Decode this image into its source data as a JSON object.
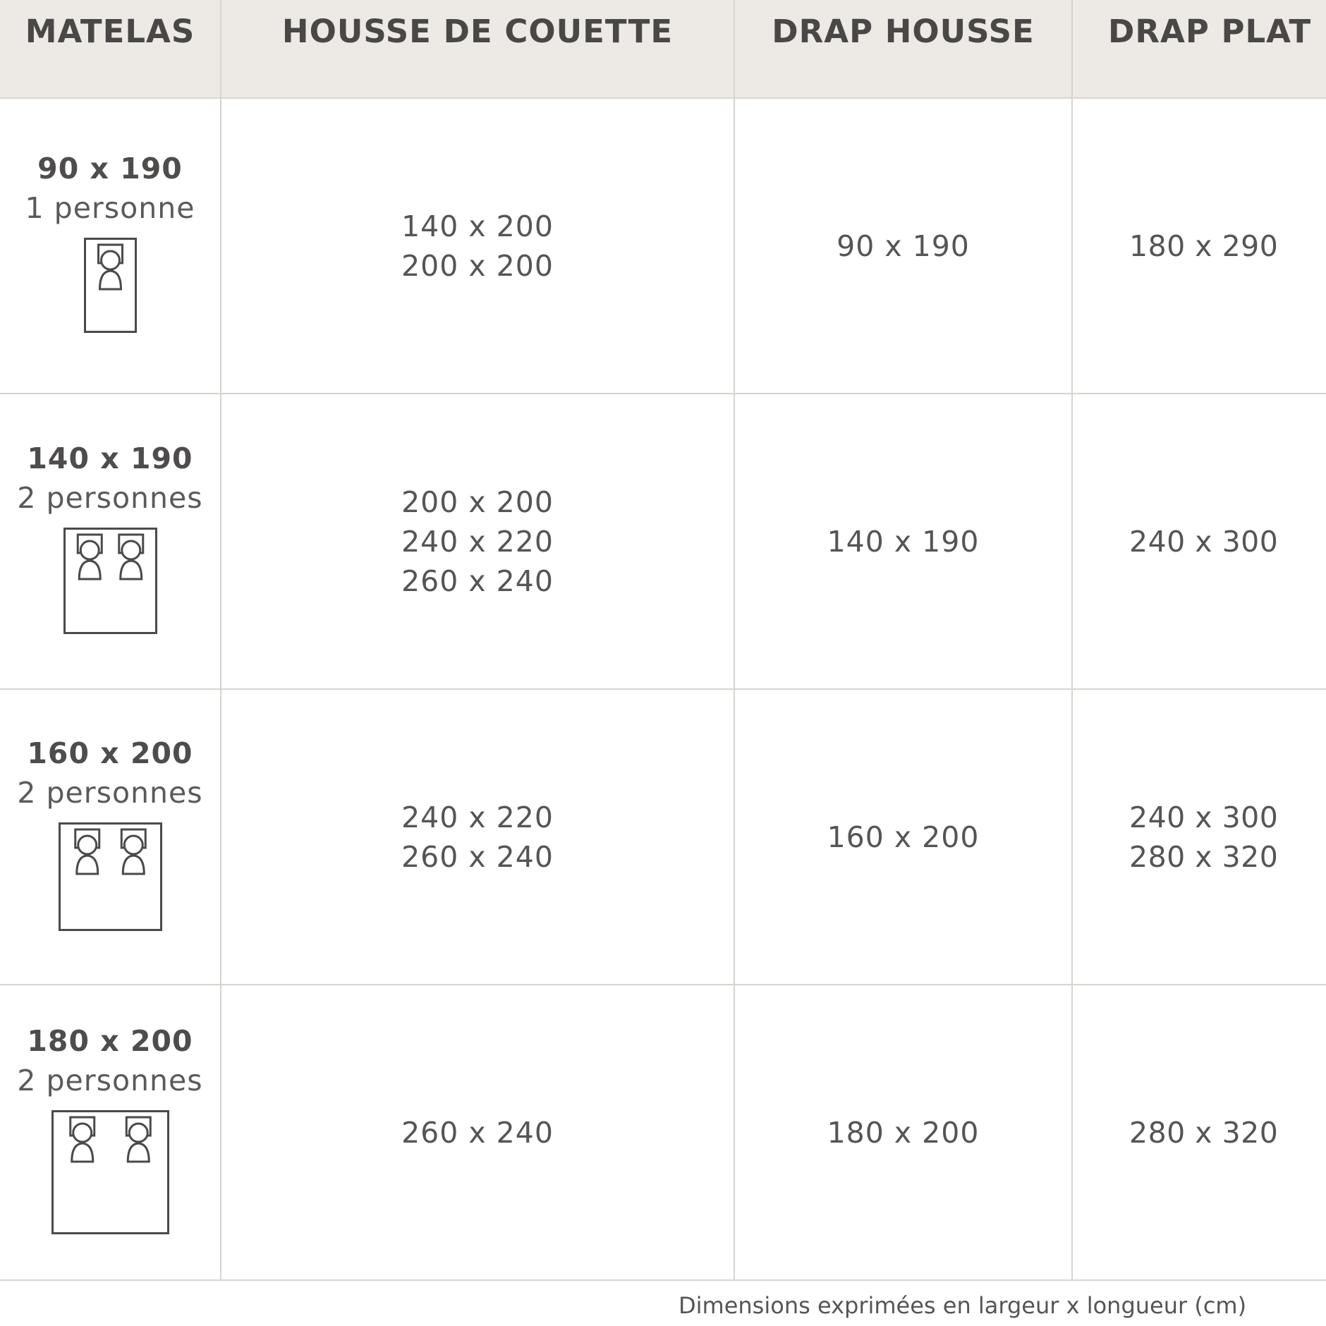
{
  "headers": [
    "MATELAS",
    "HOUSSE DE COUETTE",
    "DRAP HOUSSE",
    "DRAP PLAT"
  ],
  "rows": [
    {
      "matelas": {
        "size": "90 x 190",
        "label": "1 personne",
        "icon": "single-bed-icon",
        "sleepers": 1
      },
      "housse": [
        "140 x 200",
        "200 x 200"
      ],
      "drap_housse": [
        "90 x 190"
      ],
      "drap_plat": [
        "180 x 290"
      ]
    },
    {
      "matelas": {
        "size": "140 x 190",
        "label": "2 personnes",
        "icon": "double-bed-icon",
        "sleepers": 2
      },
      "housse": [
        "200 x 200",
        "240 x 220",
        "260 x 240"
      ],
      "drap_housse": [
        "140 x 190"
      ],
      "drap_plat": [
        "240 x 300"
      ]
    },
    {
      "matelas": {
        "size": "160 x 200",
        "label": "2 personnes",
        "icon": "double-bed-icon",
        "sleepers": 2
      },
      "housse": [
        "240 x 220",
        "260 x 240"
      ],
      "drap_housse": [
        "160 x 200"
      ],
      "drap_plat": [
        "240 x 300",
        "280 x 320"
      ]
    },
    {
      "matelas": {
        "size": "180 x 200",
        "label": "2 personnes",
        "icon": "double-bed-icon",
        "sleepers": 2
      },
      "housse": [
        "260 x 240"
      ],
      "drap_housse": [
        "180 x 200"
      ],
      "drap_plat": [
        "280 x 320"
      ]
    }
  ],
  "footer": "Dimensions exprimées en largeur x longueur (cm)",
  "colors": {
    "header_bg": "#edeae6",
    "text": "#555555",
    "border": "#d8d4cf"
  }
}
